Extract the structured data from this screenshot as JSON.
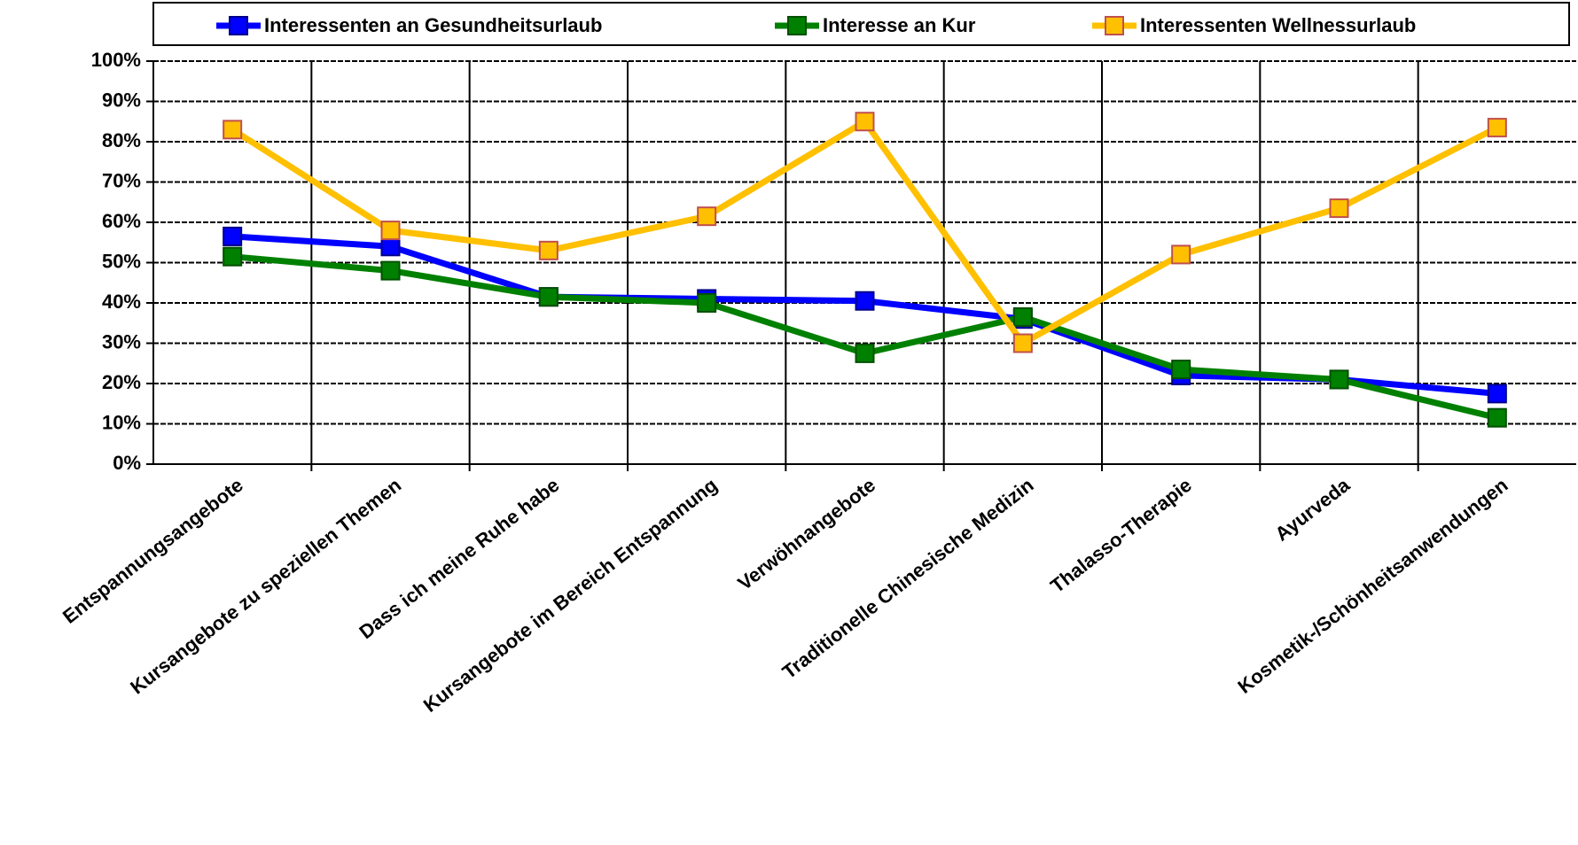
{
  "chart_data": {
    "type": "line",
    "categories": [
      "Entspannungsangebote",
      "Kursangebote zu speziellen Themen",
      "Dass ich meine Ruhe habe",
      "Kursangebote im Bereich Entspannung",
      "Verwöhnangebote",
      "Traditionelle Chinesische Medizin",
      "Thalasso-Therapie",
      "Ayurveda",
      "Kosmetik-/Schönheitsanwendungen"
    ],
    "series": [
      {
        "name": "Interessenten an Gesundheitsurlaub",
        "color": "#0000ff",
        "values": [
          56.5,
          54,
          41.5,
          41,
          40.5,
          36,
          22,
          21,
          17.5
        ]
      },
      {
        "name": "Interesse an Kur",
        "color": "#008000",
        "values": [
          51.5,
          48,
          41.5,
          40,
          27.5,
          36.5,
          23.5,
          21,
          11.5
        ]
      },
      {
        "name": "Interessenten Wellnessurlaub",
        "color": "#ffc000",
        "values": [
          83,
          58,
          53,
          61.5,
          85,
          30,
          52,
          63.5,
          83.5
        ]
      }
    ],
    "ylim": [
      0,
      100
    ],
    "yticks": [
      {
        "value": 0,
        "label": "0%"
      },
      {
        "value": 10,
        "label": "10%"
      },
      {
        "value": 20,
        "label": "20%"
      },
      {
        "value": 30,
        "label": "30%"
      },
      {
        "value": 40,
        "label": "40%"
      },
      {
        "value": 50,
        "label": "50%"
      },
      {
        "value": 60,
        "label": "60%"
      },
      {
        "value": 70,
        "label": "70%"
      },
      {
        "value": 80,
        "label": "80%"
      },
      {
        "value": 90,
        "label": "90%"
      },
      {
        "value": 100,
        "label": "100%"
      }
    ],
    "grid": true,
    "legend": "top"
  }
}
